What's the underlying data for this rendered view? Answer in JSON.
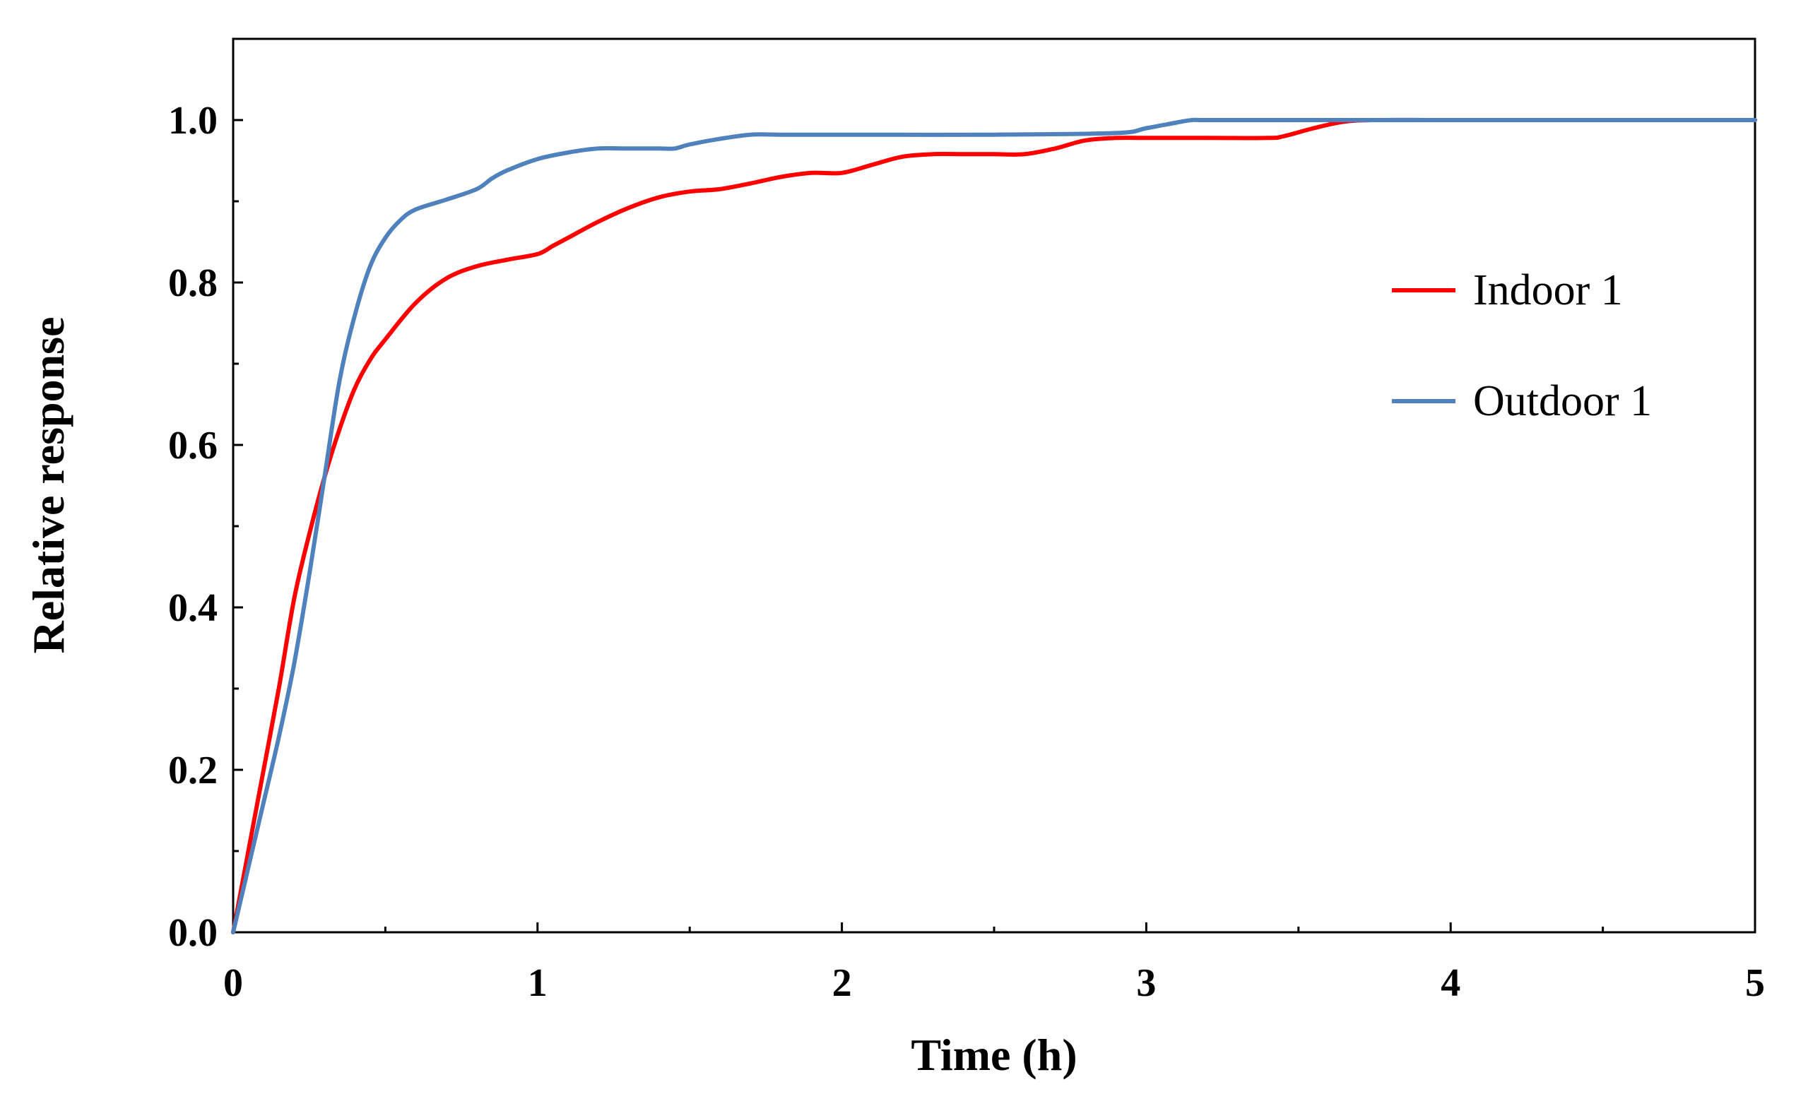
{
  "chart_data": {
    "type": "line",
    "title": "",
    "xlabel": "Time (h)",
    "ylabel": "Relative response",
    "xlim": [
      0,
      5
    ],
    "ylim": [
      0,
      1.1
    ],
    "x_ticks": [
      0,
      1,
      2,
      3,
      4,
      5
    ],
    "x_tick_labels": [
      "0",
      "1",
      "2",
      "3",
      "4",
      "5"
    ],
    "y_ticks": [
      0,
      0.2,
      0.4,
      0.6,
      0.8,
      1.0
    ],
    "y_tick_labels": [
      "0.0",
      "0.2",
      "0.4",
      "0.6",
      "0.8",
      "1.0"
    ],
    "grid": false,
    "legend_position": "right",
    "series": [
      {
        "name": "Indoor 1",
        "color": "#ff0000",
        "x": [
          0,
          0.05,
          0.1,
          0.15,
          0.2,
          0.25,
          0.3,
          0.35,
          0.4,
          0.45,
          0.5,
          0.6,
          0.7,
          0.8,
          0.9,
          1.0,
          1.05,
          1.1,
          1.2,
          1.3,
          1.4,
          1.5,
          1.6,
          1.7,
          1.8,
          1.9,
          2.0,
          2.1,
          2.2,
          2.3,
          2.4,
          2.5,
          2.6,
          2.7,
          2.8,
          2.9,
          3.0,
          3.2,
          3.4,
          3.45,
          3.55,
          3.65,
          3.75,
          4.0,
          4.5,
          5.0
        ],
        "values": [
          0,
          0.1,
          0.2,
          0.3,
          0.41,
          0.49,
          0.56,
          0.62,
          0.67,
          0.705,
          0.73,
          0.775,
          0.805,
          0.82,
          0.828,
          0.835,
          0.845,
          0.855,
          0.875,
          0.892,
          0.905,
          0.912,
          0.915,
          0.922,
          0.93,
          0.935,
          0.935,
          0.945,
          0.955,
          0.958,
          0.958,
          0.958,
          0.958,
          0.965,
          0.975,
          0.978,
          0.978,
          0.978,
          0.978,
          0.98,
          0.99,
          0.998,
          1.0,
          1.0,
          1.0,
          1.0
        ]
      },
      {
        "name": "Outdoor 1",
        "color": "#4f81bd",
        "x": [
          0,
          0.05,
          0.1,
          0.15,
          0.2,
          0.25,
          0.3,
          0.35,
          0.4,
          0.45,
          0.5,
          0.55,
          0.6,
          0.7,
          0.8,
          0.85,
          0.9,
          1.0,
          1.1,
          1.2,
          1.3,
          1.4,
          1.45,
          1.5,
          1.6,
          1.7,
          1.8,
          2.0,
          2.5,
          2.9,
          3.0,
          3.1,
          3.15,
          3.2,
          3.5,
          4.0,
          4.5,
          5.0
        ],
        "values": [
          0,
          0.08,
          0.16,
          0.24,
          0.33,
          0.44,
          0.56,
          0.68,
          0.76,
          0.82,
          0.855,
          0.877,
          0.89,
          0.902,
          0.915,
          0.928,
          0.938,
          0.952,
          0.96,
          0.965,
          0.965,
          0.965,
          0.965,
          0.97,
          0.977,
          0.982,
          0.982,
          0.982,
          0.982,
          0.984,
          0.99,
          0.997,
          1.0,
          1.0,
          1.0,
          1.0,
          1.0,
          1.0
        ]
      }
    ]
  }
}
